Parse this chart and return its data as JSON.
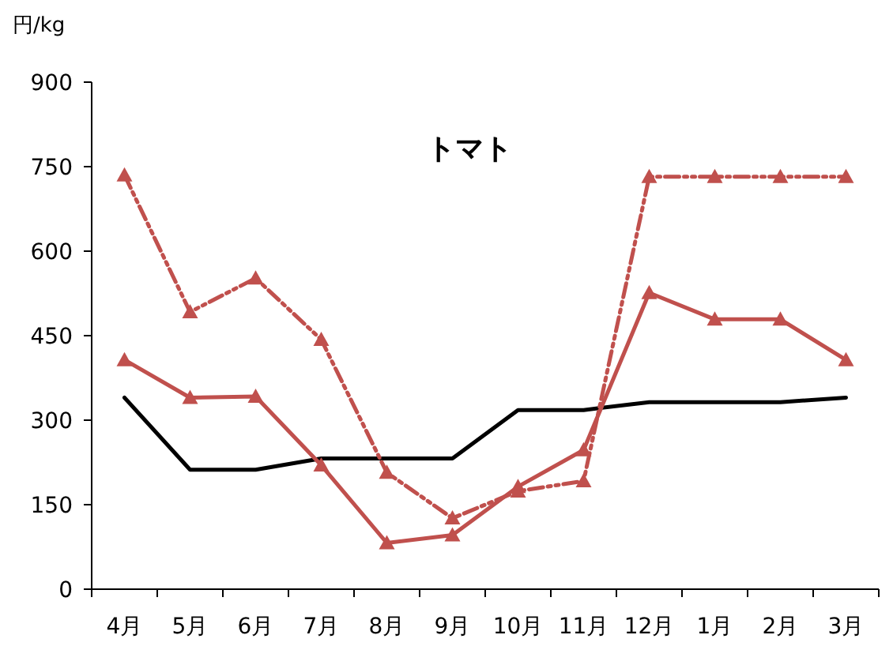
{
  "chart_data": {
    "type": "line",
    "title": "トマト",
    "ylabel": "円/kg",
    "categories": [
      "4月",
      "5月",
      "6月",
      "7月",
      "8月",
      "9月",
      "10月",
      "11月",
      "12月",
      "1月",
      "2月",
      "3月"
    ],
    "ylim": [
      0,
      900
    ],
    "yticks": [
      0,
      150,
      300,
      450,
      600,
      750,
      900
    ],
    "grid": false,
    "series": [
      {
        "color": "#000000",
        "marker": "none",
        "line_style": "solid",
        "values": [
          340,
          212,
          212,
          232,
          232,
          232,
          318,
          318,
          332,
          332,
          332,
          340
        ]
      },
      {
        "color": "#c0504d",
        "marker": "triangle",
        "line_style": "solid",
        "values": [
          407,
          340,
          342,
          220,
          82,
          96,
          182,
          247,
          526,
          479,
          479,
          407
        ]
      },
      {
        "color": "#c0504d",
        "marker": "triangle",
        "line_style": "dashed",
        "values": [
          735,
          492,
          552,
          443,
          207,
          126,
          174,
          192,
          732,
          732,
          732,
          732
        ]
      }
    ]
  }
}
